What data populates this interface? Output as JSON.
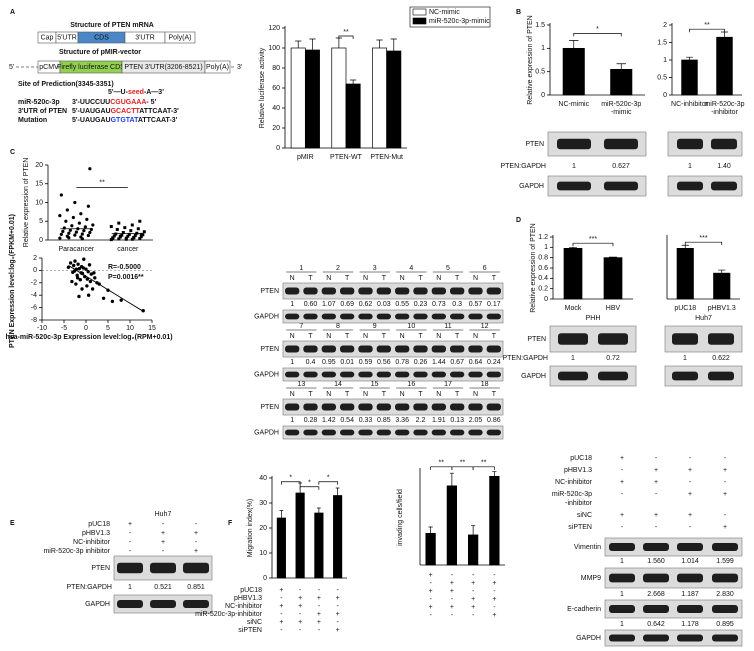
{
  "panel_labels": [
    "A",
    "B",
    "C",
    "D",
    "E",
    "F"
  ],
  "diagram_a": {
    "mrna_title": "Structure of PTEN mRNA",
    "mrna_parts": [
      "Cap",
      "5'UTR",
      "CDS",
      "3'UTR",
      "Poly(A)"
    ],
    "ends": [
      "5'",
      "3'"
    ],
    "vector_title": "Structure of pMIR-vector",
    "vector_parts": [
      "pCMV",
      "Firefly luciferase CDS",
      "PTEN 3'UTR(3206-8521)",
      "Poly(A)"
    ],
    "site": "Site of Prediction(3345-3351)",
    "seed": [
      "5'—U-",
      "seed",
      "-A—3'"
    ],
    "seed_color": "#e02020",
    "sequences": [
      {
        "name": "miR-520c-3p",
        "parts": [
          "3'-UUCCUU",
          "CGUGAAA",
          "- 5'"
        ],
        "highlight_color": "#e02020"
      },
      {
        "name": "3'UTR of PTEN",
        "parts": [
          "5'-UAUGAU",
          "GCACTT",
          "ATTCAAT-3'"
        ],
        "highlight_color": "#e02020"
      },
      {
        "name": "Mutation",
        "parts": [
          "5'-UAUGAU",
          "GTGTAT",
          "ATTCAAT-3'"
        ],
        "highlight_color": "#2040e0"
      }
    ]
  },
  "charts": [
    {
      "type": "bar",
      "ylabel": "Relative luciferase activity",
      "categories": [
        "pMIR",
        "PTEN-WT",
        "PTEN-Mut"
      ],
      "series": [
        {
          "name": "NC-mimic",
          "color": "#ffffff",
          "values": [
            100,
            100,
            100
          ],
          "errors": [
            7,
            10,
            8
          ]
        },
        {
          "name": "miR-520c-3p-mimic",
          "color": "#000000",
          "values": [
            98,
            64,
            97
          ],
          "errors": [
            11,
            4,
            12
          ]
        }
      ],
      "ylim": [
        0,
        120
      ],
      "yticks": [
        0,
        20,
        40,
        60,
        80,
        100,
        120
      ],
      "significance": [
        "**"
      ]
    },
    {
      "type": "bar",
      "ylabel": "Relative expression of PTEN",
      "categories": [
        "NC-mimic",
        [
          "miR-520c-3p",
          "-mimic"
        ]
      ],
      "series": [
        {
          "color": "#000000",
          "values": [
            1.0,
            0.55
          ],
          "errors": [
            0.17,
            0.12
          ]
        }
      ],
      "ylim": [
        0,
        1.5
      ],
      "yticks": [
        0,
        0.5,
        1,
        1.5
      ],
      "significance": [
        "*"
      ]
    },
    {
      "type": "bar",
      "categories": [
        "NC-inhibitor",
        [
          "miR-520c-3p",
          "-inhibitor"
        ]
      ],
      "series": [
        {
          "color": "#000000",
          "values": [
            1.0,
            1.65
          ],
          "errors": [
            0.08,
            0.15
          ]
        }
      ],
      "ylim": [
        0,
        2
      ],
      "yticks": [
        0,
        0.5,
        1,
        1.5,
        2
      ],
      "significance": [
        "**"
      ]
    },
    {
      "type": "bar",
      "ylabel": "Relative expression of PTEN",
      "categories": [
        "Mock",
        "HBV"
      ],
      "group": "PHH",
      "series": [
        {
          "color": "#000000",
          "values": [
            0.98,
            0.8
          ],
          "errors": [
            0.02,
            0.01
          ]
        }
      ],
      "ylim": [
        0,
        1.2
      ],
      "yticks": [
        0,
        0.2,
        0.4,
        0.6,
        0.8,
        1,
        1.2
      ],
      "significance": [
        "***"
      ]
    },
    {
      "type": "bar",
      "categories": [
        "pUC18",
        "pHBV1.3"
      ],
      "group": "Huh7",
      "series": [
        {
          "color": "#000000",
          "values": [
            0.98,
            0.5
          ],
          "errors": [
            0.06,
            0.06
          ]
        }
      ],
      "ylim": [
        0,
        1.2
      ],
      "significance": [
        "***"
      ]
    },
    {
      "type": "bar",
      "ylabel": "Migration index(%)",
      "series": [
        {
          "color": "#000000",
          "values": [
            24,
            34,
            26,
            33
          ],
          "errors": [
            3,
            4,
            2,
            3
          ]
        }
      ],
      "ylim": [
        0,
        40
      ],
      "yticks": [
        0,
        10,
        20,
        30,
        40
      ],
      "significance": [
        "*",
        "*",
        "*"
      ]
    },
    {
      "type": "bar",
      "ylabel": "invading cells/field",
      "series": [
        {
          "color": "#000000",
          "values": [
            10,
            25,
            9.5,
            28
          ],
          "errors": [
            2,
            4,
            3,
            1.5
          ]
        }
      ],
      "ylim": [
        0,
        30
      ],
      "significance": [
        "**",
        "**",
        "**"
      ]
    }
  ],
  "dot_plot": {
    "ylabel": "Relative expression of PTEN",
    "categories": [
      "Paracancer",
      "cancer"
    ],
    "series": [
      {
        "values": [
          0.5,
          0.8,
          1,
          1.2,
          1.3,
          1.5,
          1.6,
          1.8,
          2,
          2.1,
          2.3,
          2.5,
          2.6,
          2.8,
          3,
          3.2,
          3.5,
          3.8,
          4,
          4.5,
          5,
          5.5,
          6,
          6.5,
          7,
          8,
          9,
          10,
          12,
          0.3,
          0.6,
          19
        ],
        "mean": 3
      },
      {
        "values": [
          0.1,
          0.2,
          0.3,
          0.4,
          0.5,
          0.6,
          0.7,
          0.8,
          0.9,
          1,
          1.1,
          1.2,
          1.3,
          1.4,
          1.5,
          1.6,
          1.8,
          2,
          2.2,
          2.5,
          2.8,
          3,
          3.3,
          3.6,
          4,
          4.5,
          5,
          0.2,
          0.4,
          0.6,
          1,
          1.5
        ],
        "mean": 1.7
      }
    ],
    "ylim": [
      0,
      20
    ],
    "yticks": [
      0,
      5,
      10,
      15,
      20
    ],
    "significance": "**"
  },
  "correlation": {
    "xlabel": "hsa-miR-520c-3p Expression level:log₂(RPM+0.01)",
    "ylabel": "PTEN Expression level:log₂(FPKM+0.01)",
    "x": [
      -4,
      -3.5,
      -3,
      -2.8,
      -2.5,
      -2.2,
      -2,
      -1.8,
      -1.5,
      -1.3,
      -1,
      -0.8,
      -0.5,
      -0.3,
      0,
      0.2,
      0.5,
      0.8,
      1,
      1.2,
      1.5,
      2,
      2.5,
      3,
      -2.6,
      -1.9,
      -1.1,
      -0.6,
      0.3,
      1.8,
      -3.2,
      -2.3,
      -1.6,
      -0.9,
      0.6,
      4,
      5,
      6,
      8,
      13
    ],
    "y": [
      0.5,
      1.2,
      -0.3,
      0.8,
      1.5,
      0.2,
      -0.8,
      1,
      0.3,
      -1.5,
      0.6,
      -0.5,
      1.8,
      -1,
      0.2,
      -2.5,
      -0.2,
      0.9,
      -1.8,
      -0.6,
      -3,
      -1.2,
      -2,
      -2.2,
      -0.1,
      -1.2,
      -0.4,
      0.4,
      -1.4,
      -0.4,
      -1.8,
      -2.2,
      -4.2,
      -3,
      -4,
      -4.5,
      -3.2,
      -5,
      -4.8,
      -6.5
    ],
    "xlim": [
      -10,
      15
    ],
    "xticks": [
      -10,
      -5,
      0,
      5,
      10,
      15
    ],
    "ylim": [
      -8,
      2
    ],
    "yticks": [
      -8,
      -6,
      -4,
      -2,
      0,
      2
    ],
    "annotations": [
      "R=-0.5000",
      "P=0.0016**"
    ],
    "fit_line": {
      "x": [
        -4,
        13
      ],
      "y": [
        0.8,
        -6.6
      ]
    }
  },
  "sample_blots": {
    "lane_labels": [
      "N",
      "T"
    ],
    "blocks": [
      {
        "samples": [
          "1",
          "2",
          "3",
          "4",
          "5",
          "6"
        ],
        "bands": [
          "PTEN",
          "GAPDH"
        ],
        "ratios": [
          "1",
          "0.60",
          "1.07",
          "0.69",
          "0.62",
          "0.03",
          "0.55",
          "0.23",
          "0.73",
          "0.3",
          "0.57",
          "0.17"
        ]
      },
      {
        "samples": [
          "7",
          "8",
          "9",
          "10",
          "11",
          "12"
        ],
        "bands": [
          "PTEN",
          "GAPDH"
        ],
        "ratios": [
          "1",
          "0.4",
          "0.95",
          "0.01",
          "0.59",
          "0.56",
          "0.78",
          "0.26",
          "1.44",
          "0.67",
          "0.64",
          "0.24"
        ]
      },
      {
        "samples": [
          "13",
          "14",
          "15",
          "16",
          "17",
          "18"
        ],
        "bands": [
          "PTEN",
          "GAPDH"
        ],
        "ratios": [
          "1",
          "0.28",
          "1.42",
          "0.54",
          "0.33",
          "0.85",
          "3.36",
          "2.2",
          "1.91",
          "0.13",
          "2.05",
          "0.86"
        ]
      }
    ]
  },
  "blots": [
    {
      "bands": [
        "PTEN",
        "GAPDH"
      ],
      "ratio_name": "PTEN:GAPDH",
      "ratios": [
        [
          "1",
          "0.627"
        ]
      ]
    },
    {
      "ratios": [
        [
          "1",
          "1.40"
        ]
      ]
    },
    {
      "bands": [
        "PTEN",
        "GAPDH"
      ],
      "ratio_name": "PTEN:GAPDH",
      "ratios": [
        [
          "1",
          "0.72"
        ]
      ]
    },
    {
      "ratios": [
        [
          "1",
          "0.622"
        ]
      ]
    },
    {
      "title": "Huh7",
      "bands": [
        "PTEN",
        "GAPDH"
      ],
      "ratio_name": "PTEN:GAPDH",
      "ratios": [
        [
          "1",
          "0.521",
          "0.851"
        ]
      ]
    },
    {
      "bands": [
        "Vimentin",
        "MMP9",
        "E-cadherin",
        "GAPDH"
      ],
      "ratios": [
        [
          "1",
          "1.560",
          "1.014",
          "1.599"
        ],
        [
          "1",
          "2.668",
          "1.187",
          "2.830"
        ],
        [
          "1",
          "0.642",
          "1.178",
          "0.895"
        ]
      ]
    }
  ],
  "sign_tables": [
    {
      "rows": [
        {
          "name": "pUC18",
          "signs": [
            "+",
            "-",
            "-"
          ]
        },
        {
          "name": "pHBV1.3",
          "signs": [
            "-",
            "+",
            "+"
          ]
        },
        {
          "name": "NC-inhibitor",
          "signs": [
            "-",
            "+",
            "-"
          ]
        },
        {
          "name": "miR-520c-3p inhibitor",
          "signs": [
            "-",
            "-",
            "+"
          ]
        }
      ]
    },
    {
      "rows": [
        {
          "name": "pUC18",
          "signs": [
            "+",
            "-",
            "-",
            "-"
          ]
        },
        {
          "name": "pHBV1.3",
          "signs": [
            "-",
            "+",
            "+",
            "+"
          ]
        },
        {
          "name": "NC-inhibitor",
          "signs": [
            "+",
            "+",
            "-",
            "-"
          ]
        },
        {
          "name": "miR-520c-3p-inhibitor",
          "signs": [
            "-",
            "-",
            "+",
            "+"
          ]
        },
        {
          "name": "siNC",
          "signs": [
            "+",
            "+",
            "+",
            "-"
          ]
        },
        {
          "name": "siPTEN",
          "signs": [
            "-",
            "-",
            "-",
            "+"
          ]
        }
      ]
    },
    {
      "rows": [
        {
          "name": "pUC18",
          "signs": [
            "+",
            "-",
            "-",
            "-"
          ]
        },
        {
          "name": "pHBV1.3",
          "signs": [
            "-",
            "+",
            "+",
            "+"
          ]
        },
        {
          "name": "NC-inhibitor",
          "signs": [
            "+",
            "+",
            "-",
            "-"
          ]
        },
        {
          "name": [
            "miR-520c-3p",
            "-inhibitor"
          ],
          "signs": [
            "-",
            "-",
            "+",
            "+"
          ]
        },
        {
          "name": "siNC",
          "signs": [
            "+",
            "+",
            "+",
            "-"
          ]
        },
        {
          "name": "siPTEN",
          "signs": [
            "-",
            "-",
            "-",
            "+"
          ]
        }
      ]
    }
  ]
}
